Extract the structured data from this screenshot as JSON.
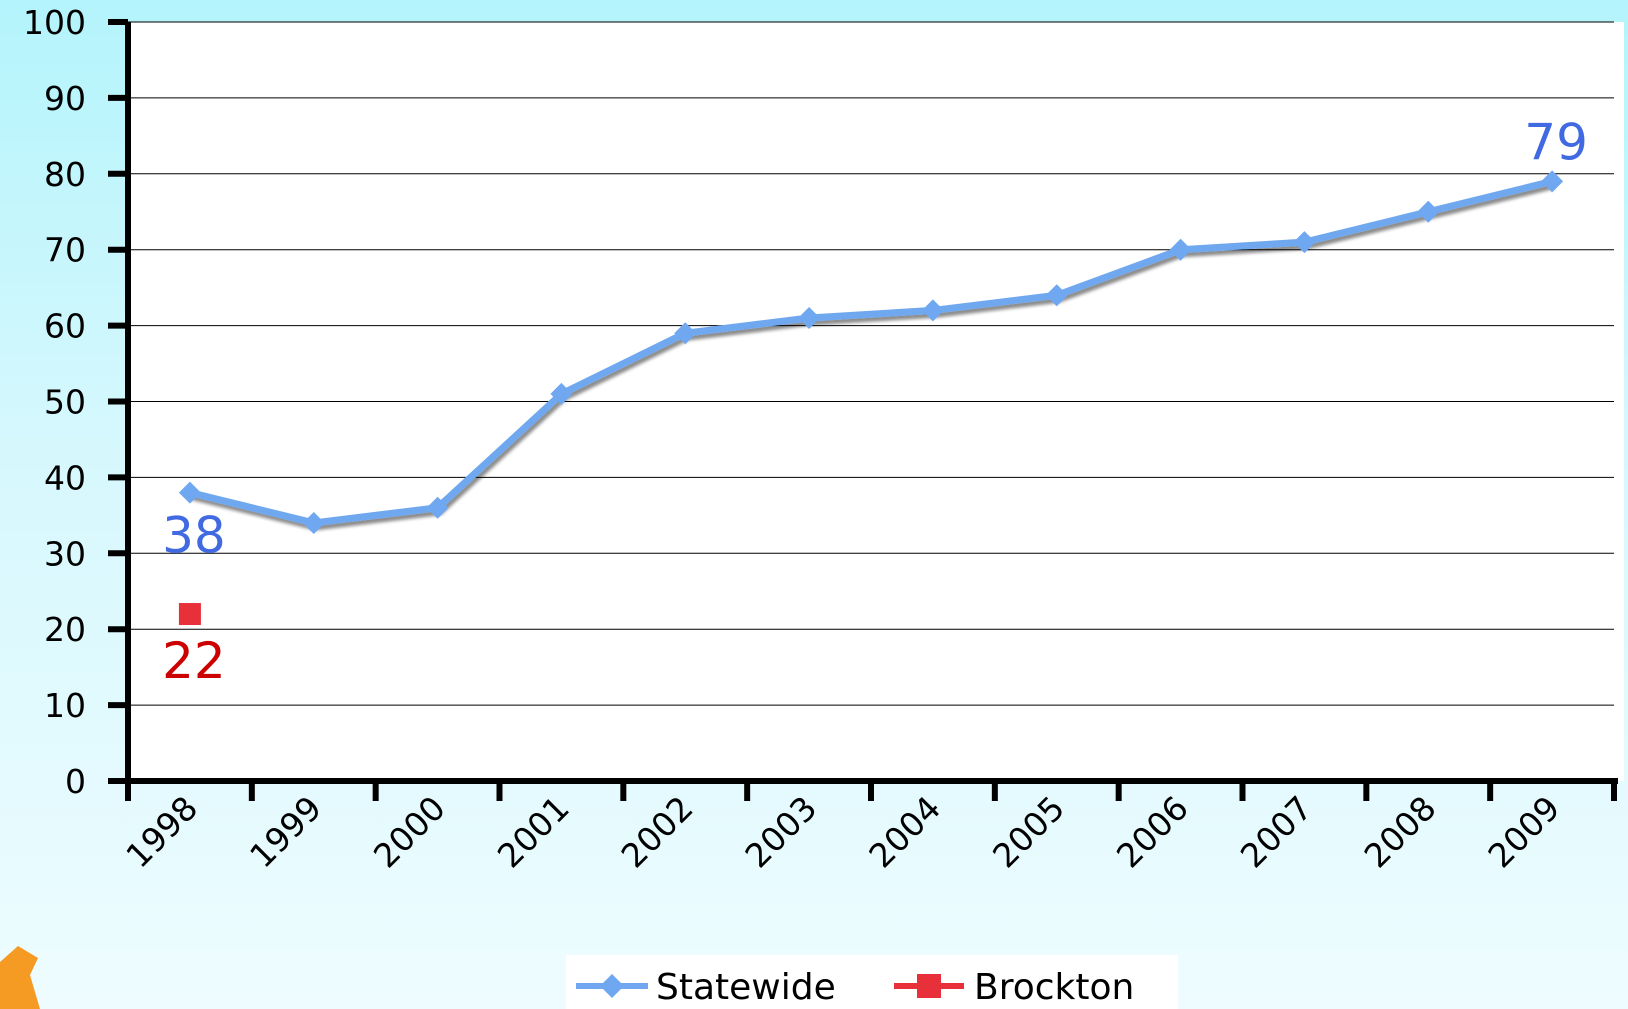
{
  "chart_data": {
    "type": "line",
    "categories": [
      "1998",
      "1999",
      "2000",
      "2001",
      "2002",
      "2003",
      "2004",
      "2005",
      "2006",
      "2007",
      "2008",
      "2009"
    ],
    "series": [
      {
        "name": "Statewide",
        "values": [
          38,
          34,
          36,
          51,
          59,
          61,
          62,
          64,
          70,
          71,
          75,
          79
        ],
        "color": "#6fa8f0",
        "marker": "diamond",
        "labels": [
          {
            "index": 0,
            "text": "38",
            "color": "#4169e1"
          },
          {
            "index": 11,
            "text": "79",
            "color": "#4169e1"
          }
        ]
      },
      {
        "name": "Brockton",
        "values": [
          22,
          null,
          null,
          null,
          null,
          null,
          null,
          null,
          null,
          null,
          null,
          null
        ],
        "color": "#e8303a",
        "marker": "square",
        "labels": [
          {
            "index": 0,
            "text": "22",
            "color": "#cc0000"
          }
        ]
      }
    ],
    "yticks": [
      "0",
      "10",
      "20",
      "30",
      "40",
      "50",
      "60",
      "70",
      "80",
      "90",
      "100"
    ],
    "ylim": [
      0,
      100
    ],
    "grid": true,
    "legend": "bottom-center",
    "background": "#ffffff"
  }
}
